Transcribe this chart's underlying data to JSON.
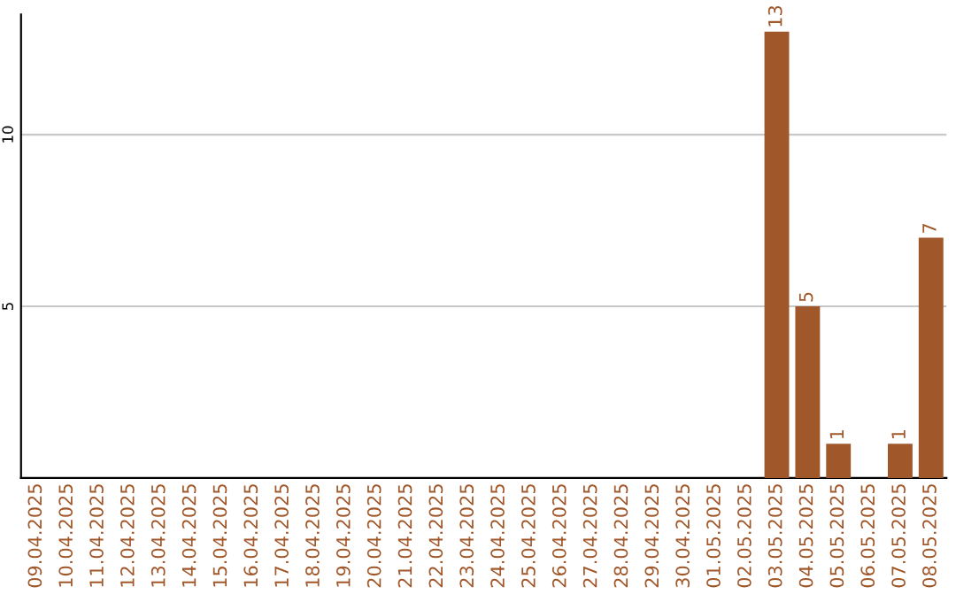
{
  "chart_data": {
    "type": "bar",
    "categories": [
      "09.04.2025",
      "10.04.2025",
      "11.04.2025",
      "12.04.2025",
      "13.04.2025",
      "14.04.2025",
      "15.04.2025",
      "16.04.2025",
      "17.04.2025",
      "18.04.2025",
      "19.04.2025",
      "20.04.2025",
      "21.04.2025",
      "22.04.2025",
      "23.04.2025",
      "24.04.2025",
      "25.04.2025",
      "26.04.2025",
      "27.04.2025",
      "28.04.2025",
      "29.04.2025",
      "30.04.2025",
      "01.05.2025",
      "02.05.2025",
      "03.05.2025",
      "04.05.2025",
      "05.05.2025",
      "06.05.2025",
      "07.05.2025",
      "08.05.2025"
    ],
    "values": [
      0,
      0,
      0,
      0,
      0,
      0,
      0,
      0,
      0,
      0,
      0,
      0,
      0,
      0,
      0,
      0,
      0,
      0,
      0,
      0,
      0,
      0,
      0,
      0,
      13,
      5,
      1,
      0,
      1,
      7
    ],
    "value_labels": [
      null,
      null,
      null,
      null,
      null,
      null,
      null,
      null,
      null,
      null,
      null,
      null,
      null,
      null,
      null,
      null,
      null,
      null,
      null,
      null,
      null,
      null,
      null,
      null,
      "13",
      "5",
      "1",
      null,
      "1",
      "7"
    ],
    "color": "#a0572a",
    "ylim": [
      0,
      13.5
    ],
    "yticks": [
      5,
      10
    ],
    "grid": "y"
  }
}
